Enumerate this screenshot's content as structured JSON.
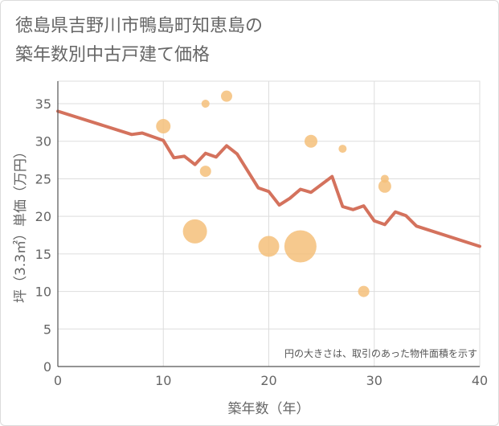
{
  "title": {
    "line1": "徳島県吉野川市鴨島町知恵島の",
    "line2": "築年数別中古戸建て価格"
  },
  "colors": {
    "line": "#d4725d",
    "bubble": "#f5c07a",
    "grid": "#dddddd",
    "text": "#666666"
  },
  "chart_data": {
    "type": "scatter",
    "xlabel": "築年数（年）",
    "ylabel": "坪（3.3㎡）単価（万円）",
    "xlim": [
      0,
      40
    ],
    "ylim": [
      0,
      38
    ],
    "xticks": [
      0,
      10,
      20,
      30,
      40
    ],
    "yticks": [
      0,
      5,
      10,
      15,
      20,
      25,
      30,
      35
    ],
    "annotation": "円の大きさは、取引のあった物件面積を示す",
    "trend_line": {
      "name": "trend",
      "x": [
        0,
        7,
        8,
        10,
        11,
        12,
        13,
        14,
        15,
        16,
        17,
        19,
        20,
        21,
        22,
        23,
        24,
        26,
        27,
        28,
        29,
        30,
        31,
        32,
        33,
        34,
        40
      ],
      "y": [
        34,
        30.9,
        31.1,
        30.1,
        27.8,
        28.0,
        26.9,
        28.4,
        27.9,
        29.4,
        28.3,
        23.8,
        23.3,
        21.5,
        22.4,
        23.6,
        23.2,
        25.3,
        21.3,
        20.9,
        21.4,
        19.4,
        18.9,
        20.6,
        20.1,
        18.7,
        16.0
      ]
    },
    "bubbles": [
      {
        "x": 10,
        "y": 32,
        "size": 9
      },
      {
        "x": 14,
        "y": 35,
        "size": 5
      },
      {
        "x": 16,
        "y": 36,
        "size": 7
      },
      {
        "x": 14,
        "y": 26,
        "size": 7
      },
      {
        "x": 13,
        "y": 18,
        "size": 15
      },
      {
        "x": 20,
        "y": 16,
        "size": 13
      },
      {
        "x": 23,
        "y": 16,
        "size": 20
      },
      {
        "x": 24,
        "y": 30,
        "size": 8
      },
      {
        "x": 27,
        "y": 29,
        "size": 5
      },
      {
        "x": 29,
        "y": 10,
        "size": 7
      },
      {
        "x": 31,
        "y": 25,
        "size": 5
      },
      {
        "x": 31,
        "y": 24,
        "size": 8
      }
    ]
  }
}
